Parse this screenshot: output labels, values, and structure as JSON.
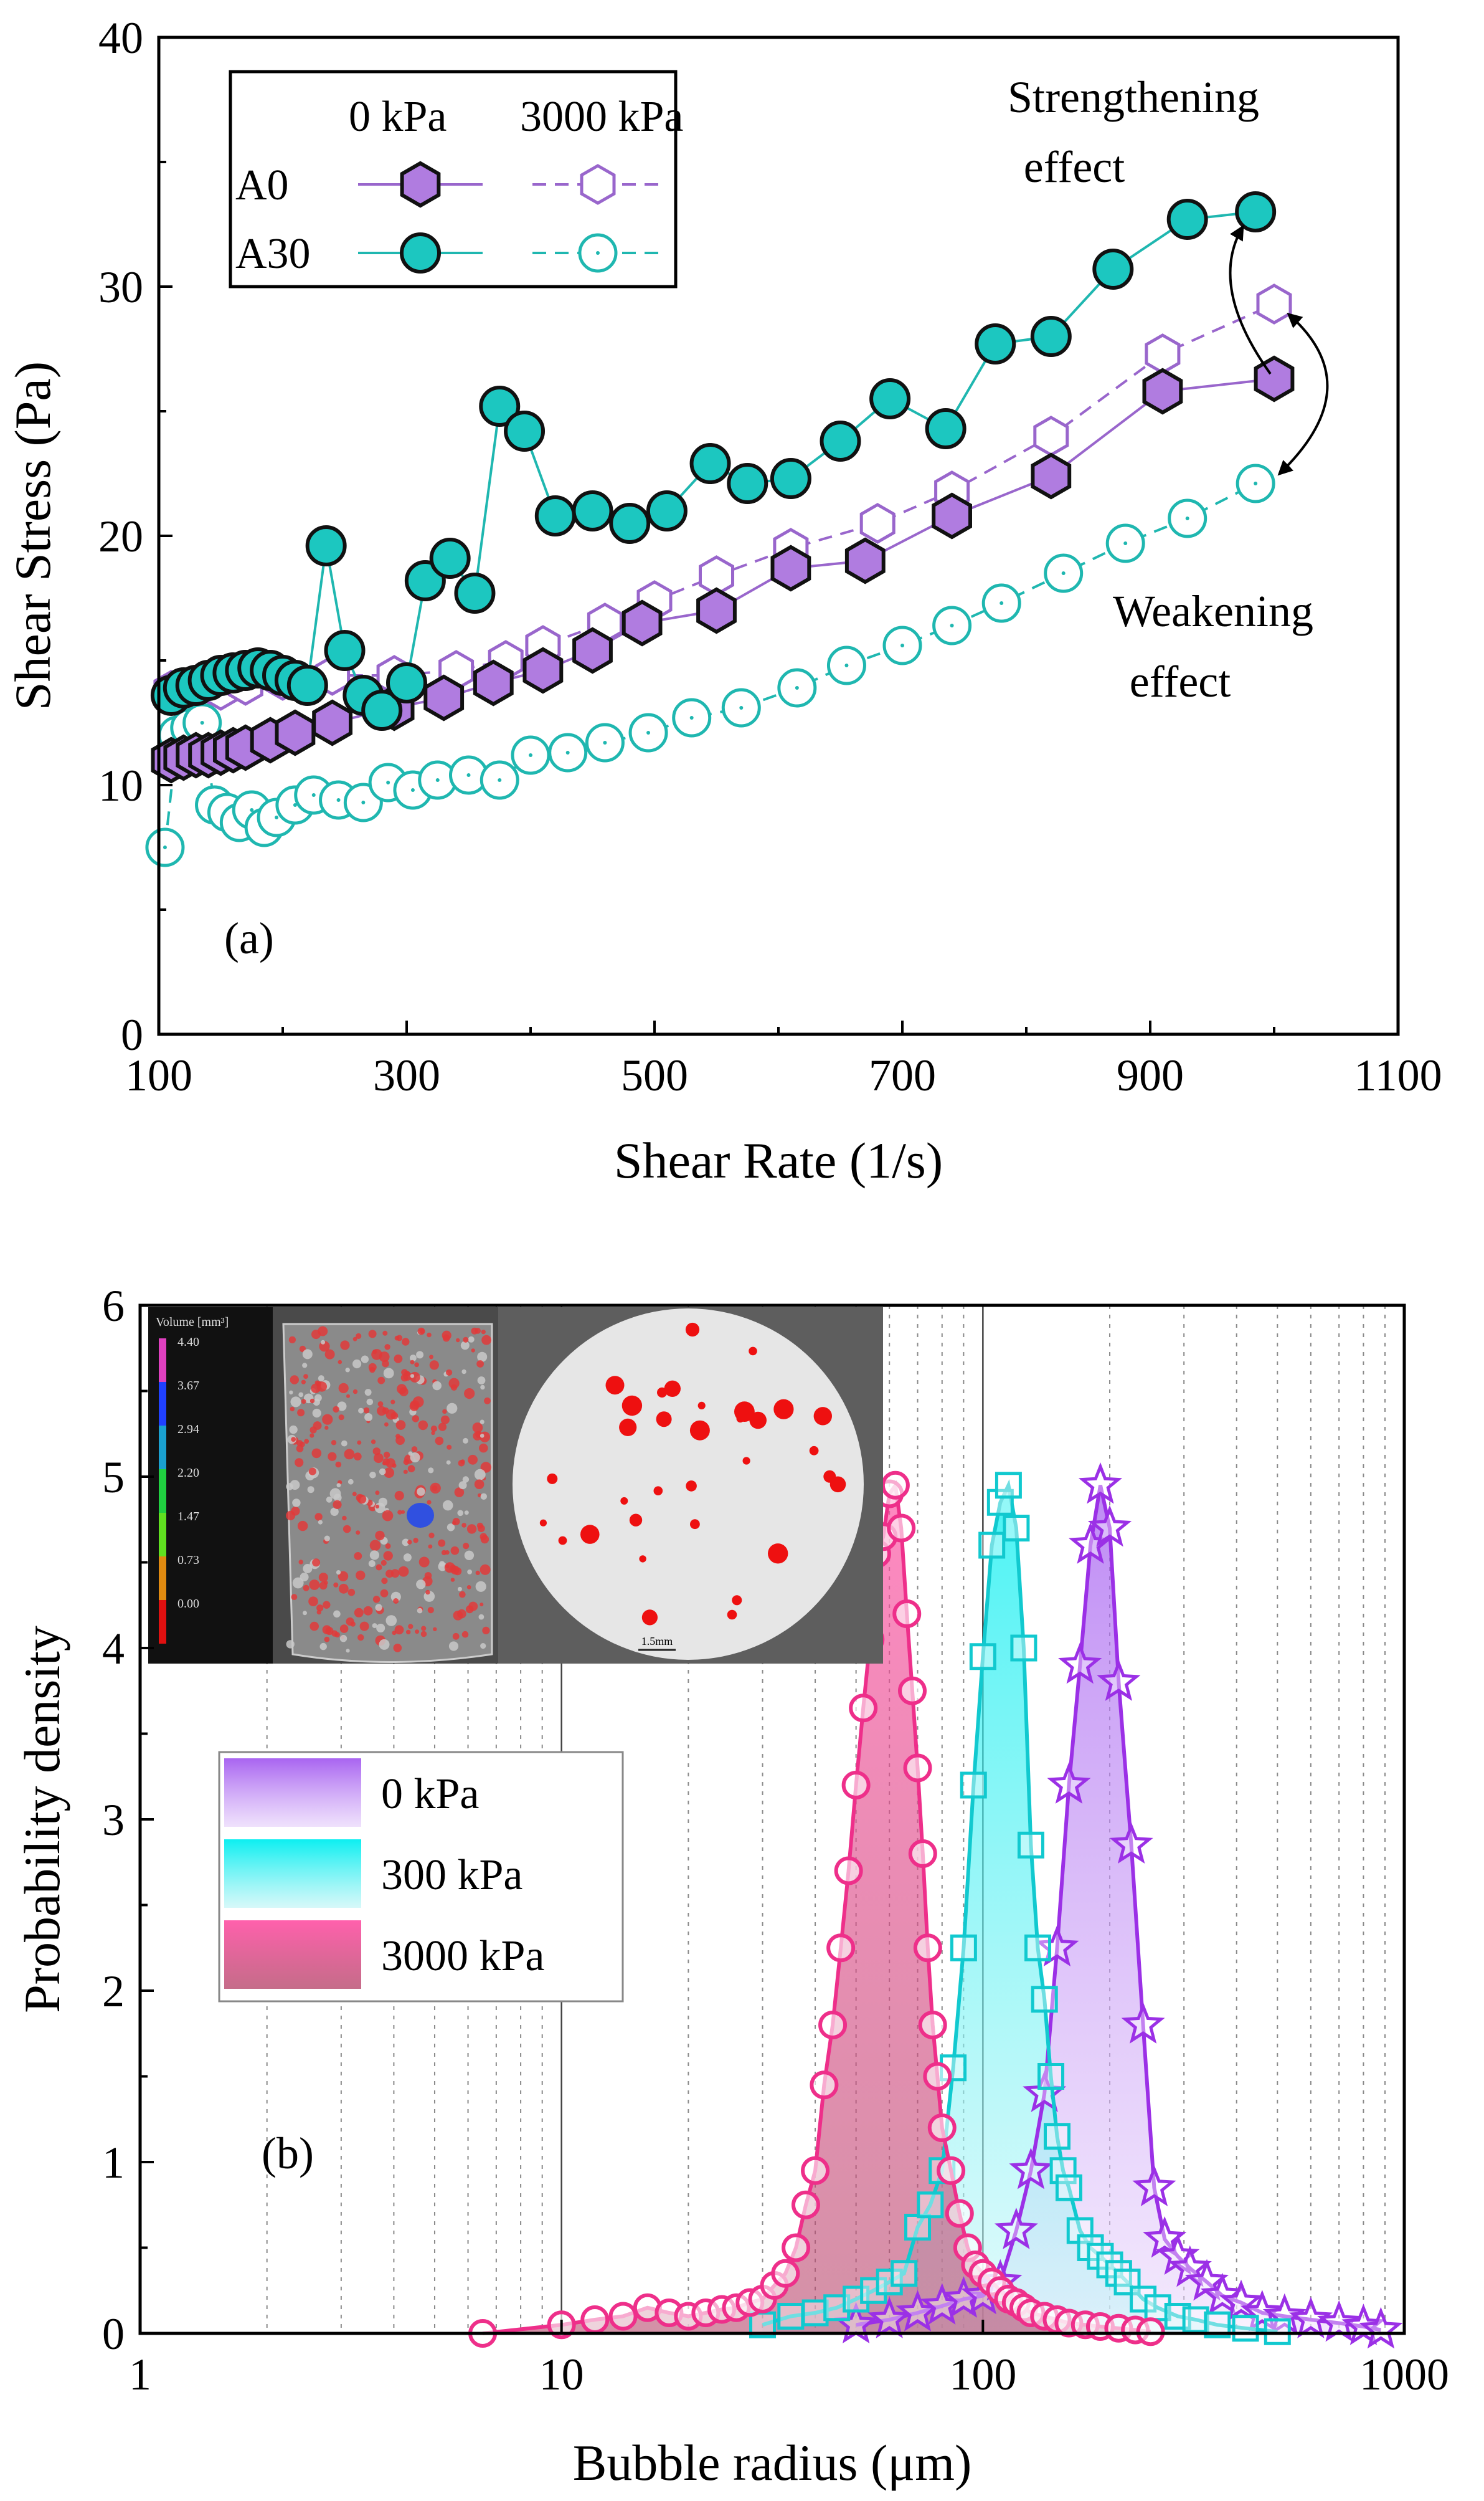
{
  "colors": {
    "A0": "#9966cc",
    "A0_fill": "#b07ce0",
    "A30": "#1fb7b0",
    "A30_fill": "#1cc7c0",
    "p0": "#9b30e6",
    "p300": "#11c9cf",
    "p3000": "#ee2f8a"
  },
  "chart_data": [
    {
      "type": "line",
      "panel_label": "(a)",
      "xlabel": "Shear Rate (1/s)",
      "ylabel": "Shear Stress (Pa)",
      "xlim": [
        100,
        1100
      ],
      "ylim": [
        0,
        40
      ],
      "xticks": [
        "100",
        "300",
        "500",
        "700",
        "900",
        "1100"
      ],
      "yticks": [
        "0",
        "10",
        "20",
        "30",
        "40"
      ],
      "legend": {
        "header_0": "0 kPa",
        "header_3000": "3000 kPa",
        "rows": [
          "A0",
          "A30"
        ]
      },
      "annotations": {
        "strengthening_1": "Strengthening",
        "strengthening_2": "effect",
        "weakening_1": "Weakening",
        "weakening_2": "effect"
      },
      "series": [
        {
          "name": "A0 0 kPa",
          "marker": "hexagon",
          "filled": true,
          "dash": false,
          "color_key": "A0",
          "x": [
            110,
            120,
            130,
            140,
            150,
            160,
            170,
            190,
            210,
            240,
            290,
            330,
            370,
            410,
            450,
            490,
            550,
            610,
            670,
            740,
            820,
            910,
            1000
          ],
          "y": [
            11.0,
            11.1,
            11.2,
            11.2,
            11.3,
            11.4,
            11.5,
            11.8,
            12.1,
            12.5,
            13.1,
            13.5,
            14.1,
            14.6,
            15.4,
            16.5,
            17.0,
            18.7,
            19.0,
            20.8,
            22.4,
            25.8,
            26.3
          ]
        },
        {
          "name": "A0 3000 kPa",
          "marker": "hexagon",
          "filled": false,
          "dash": true,
          "color_key": "A0",
          "x": [
            110,
            130,
            150,
            170,
            200,
            240,
            290,
            340,
            380,
            410,
            460,
            500,
            550,
            610,
            680,
            740,
            820,
            910,
            1000
          ],
          "y": [
            13.8,
            13.7,
            13.8,
            14.0,
            14.2,
            14.4,
            14.4,
            14.6,
            15.0,
            15.6,
            16.5,
            17.4,
            18.4,
            19.5,
            20.5,
            21.8,
            24.0,
            27.3,
            29.3
          ]
        },
        {
          "name": "A30 0 kPa",
          "marker": "circle",
          "filled": true,
          "dash": false,
          "color_key": "A30",
          "x": [
            110,
            120,
            130,
            140,
            150,
            160,
            170,
            180,
            190,
            200,
            210,
            220,
            235,
            250,
            265,
            280,
            300,
            315,
            335,
            355,
            375,
            395,
            420,
            450,
            480,
            510,
            545,
            575,
            610,
            650,
            690,
            735,
            775,
            820,
            870,
            930,
            985
          ],
          "y": [
            13.6,
            13.9,
            14.0,
            14.2,
            14.4,
            14.5,
            14.6,
            14.7,
            14.6,
            14.4,
            14.2,
            14.0,
            19.6,
            15.4,
            13.6,
            13.0,
            14.1,
            18.2,
            19.1,
            17.7,
            25.2,
            24.2,
            20.8,
            21.0,
            20.5,
            21.0,
            22.9,
            22.1,
            22.3,
            23.8,
            25.5,
            24.3,
            27.7,
            28.0,
            30.7,
            32.7,
            33.0
          ]
        },
        {
          "name": "A30 3000 kPa",
          "marker": "circle",
          "filled": false,
          "dash": true,
          "color_key": "A30",
          "x": [
            105,
            115,
            125,
            135,
            145,
            155,
            165,
            175,
            185,
            195,
            210,
            225,
            245,
            265,
            285,
            305,
            325,
            350,
            375,
            400,
            430,
            460,
            495,
            530,
            570,
            615,
            655,
            700,
            740,
            780,
            830,
            880,
            930,
            985
          ],
          "y": [
            7.5,
            12.0,
            12.3,
            12.5,
            9.2,
            8.9,
            8.5,
            9.0,
            8.3,
            8.7,
            9.2,
            9.6,
            9.4,
            9.3,
            10.1,
            9.8,
            10.2,
            10.4,
            10.2,
            11.2,
            11.3,
            11.7,
            12.1,
            12.7,
            13.1,
            13.9,
            14.8,
            15.6,
            16.4,
            17.3,
            18.5,
            19.7,
            20.7,
            22.1
          ]
        }
      ]
    },
    {
      "type": "area",
      "panel_label": "(b)",
      "xlabel": "Bubble radius (μm)",
      "ylabel": "Probability density",
      "xscale": "log",
      "xlim": [
        1,
        1000
      ],
      "ylim": [
        0,
        6
      ],
      "xticks": [
        "1",
        "10",
        "100",
        "1000"
      ],
      "yticks": [
        "0",
        "1",
        "2",
        "3",
        "4",
        "5",
        "6"
      ],
      "legend": [
        "0 kPa",
        "300 kPa",
        "3000 kPa"
      ],
      "inset": {
        "colorbar_title": "Volume [mm³]",
        "colorbar_ticks": [
          "4.40",
          "3.67",
          "2.94",
          "2.20",
          "1.47",
          "0.73",
          "0.00"
        ],
        "scale_bar": "1.5mm"
      },
      "series": [
        {
          "name": "0 kPa",
          "marker": "star",
          "color_key": "p0",
          "x": [
            50,
            60,
            70,
            80,
            90,
            100,
            110,
            120,
            130,
            140,
            150,
            160,
            170,
            180,
            190,
            200,
            210,
            225,
            240,
            255,
            270,
            290,
            310,
            340,
            370,
            410,
            460,
            520,
            600,
            700,
            800,
            880
          ],
          "y": [
            0.05,
            0.08,
            0.12,
            0.16,
            0.2,
            0.22,
            0.3,
            0.6,
            0.95,
            1.4,
            2.25,
            3.2,
            3.9,
            4.6,
            4.95,
            4.7,
            3.8,
            2.85,
            1.8,
            0.85,
            0.55,
            0.45,
            0.38,
            0.3,
            0.22,
            0.18,
            0.12,
            0.1,
            0.08,
            0.06,
            0.04,
            0.02
          ]
        },
        {
          "name": "300 kPa",
          "marker": "square",
          "color_key": "p300",
          "x": [
            30,
            35,
            40,
            45,
            50,
            55,
            60,
            65,
            70,
            75,
            80,
            85,
            90,
            95,
            100,
            105,
            110,
            115,
            120,
            125,
            130,
            135,
            140,
            145,
            150,
            155,
            160,
            170,
            180,
            190,
            200,
            210,
            220,
            240,
            260,
            290,
            320,
            360,
            420,
            500
          ],
          "y": [
            0.05,
            0.1,
            0.12,
            0.15,
            0.2,
            0.25,
            0.3,
            0.35,
            0.62,
            0.75,
            0.95,
            1.55,
            2.25,
            3.2,
            3.95,
            4.6,
            4.85,
            4.95,
            4.7,
            4.0,
            2.85,
            2.25,
            1.95,
            1.5,
            1.15,
            0.95,
            0.85,
            0.6,
            0.5,
            0.45,
            0.4,
            0.35,
            0.3,
            0.2,
            0.15,
            0.1,
            0.08,
            0.05,
            0.03,
            0.01
          ]
        },
        {
          "name": "3000 kPa",
          "marker": "circle",
          "color_key": "p3000",
          "x": [
            6.5,
            10,
            12,
            14,
            16,
            18,
            20,
            22,
            24,
            26,
            28,
            30,
            32,
            34,
            36,
            38,
            40,
            42,
            44,
            46,
            48,
            50,
            52,
            54,
            56,
            58,
            60,
            62,
            64,
            66,
            68,
            70,
            72,
            74,
            76,
            78,
            80,
            84,
            88,
            92,
            96,
            100,
            105,
            110,
            115,
            120,
            125,
            130,
            140,
            150,
            160,
            175,
            190,
            210,
            230,
            250
          ],
          "y": [
            0.0,
            0.05,
            0.08,
            0.1,
            0.15,
            0.12,
            0.1,
            0.12,
            0.14,
            0.15,
            0.18,
            0.2,
            0.28,
            0.35,
            0.5,
            0.75,
            0.95,
            1.45,
            1.8,
            2.25,
            2.7,
            3.2,
            3.65,
            4.05,
            4.55,
            4.65,
            4.9,
            4.95,
            4.7,
            4.2,
            3.75,
            3.3,
            2.8,
            2.25,
            1.8,
            1.5,
            1.2,
            0.95,
            0.7,
            0.5,
            0.4,
            0.35,
            0.3,
            0.25,
            0.2,
            0.18,
            0.15,
            0.12,
            0.1,
            0.08,
            0.06,
            0.05,
            0.04,
            0.03,
            0.02,
            0.01
          ]
        }
      ]
    }
  ]
}
